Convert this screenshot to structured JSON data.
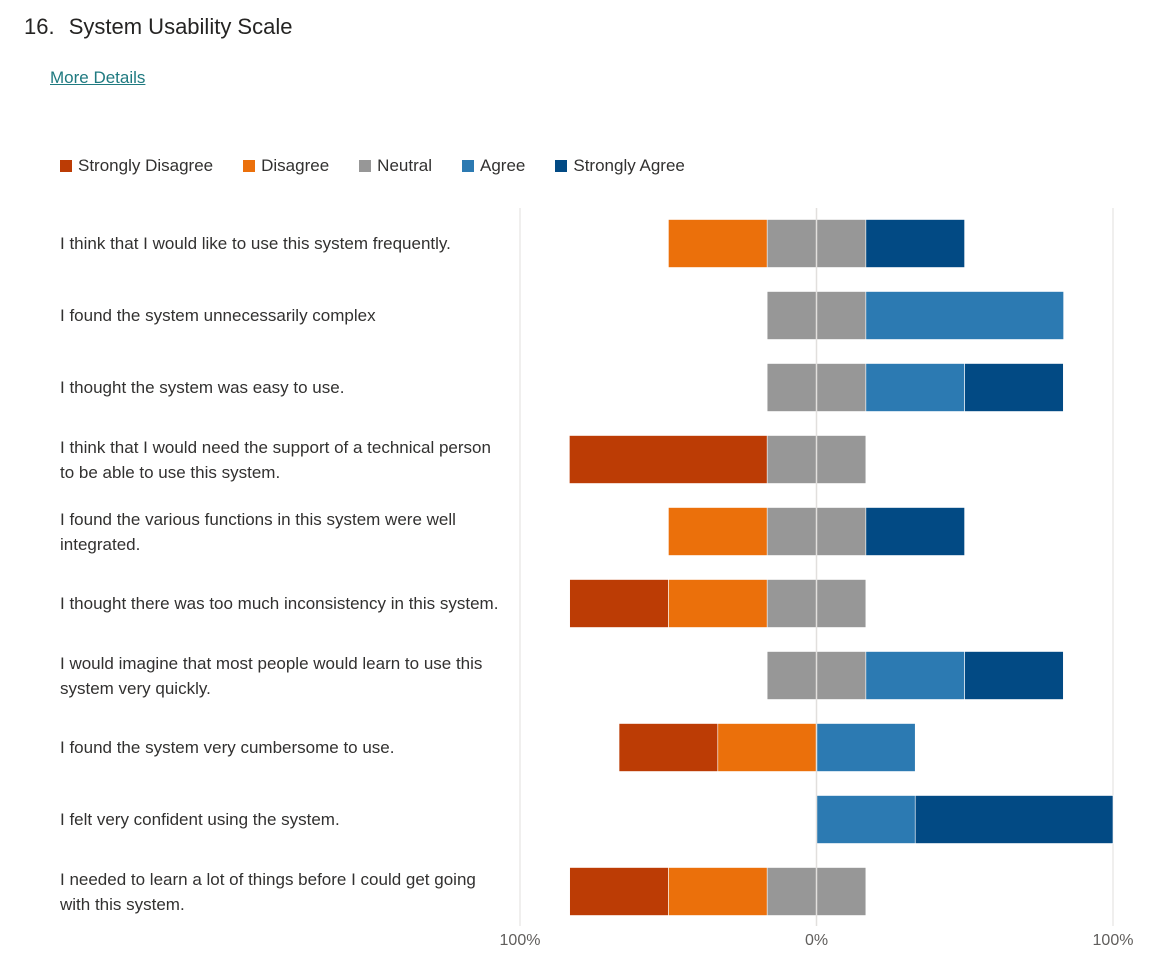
{
  "question": {
    "number": "16.",
    "title": "System Usability Scale",
    "more_details": "More Details"
  },
  "chart_data": {
    "type": "bar",
    "orientation": "horizontal-diverging-stacked",
    "legend_position": "top-left",
    "grid": true,
    "xlim": [
      -100,
      100
    ],
    "x_tick_labels": [
      "100%",
      "0%",
      "100%"
    ],
    "series": [
      {
        "name": "Strongly Disagree",
        "color": "#bc3c05",
        "values": [
          0,
          0,
          0,
          66.7,
          0,
          33.3,
          0,
          33.3,
          0,
          33.3
        ]
      },
      {
        "name": "Disagree",
        "color": "#eb700b",
        "values": [
          33.3,
          0,
          0,
          0,
          33.3,
          33.3,
          0,
          33.3,
          0,
          33.3
        ]
      },
      {
        "name": "Neutral",
        "color": "#979797",
        "values": [
          33.3,
          33.3,
          33.3,
          33.3,
          33.3,
          33.3,
          33.3,
          0,
          0,
          33.3
        ]
      },
      {
        "name": "Agree",
        "color": "#2c7ab2",
        "values": [
          0,
          66.7,
          33.3,
          0,
          0,
          0,
          33.3,
          33.3,
          33.3,
          0
        ]
      },
      {
        "name": "Strongly Agree",
        "color": "#024a84",
        "values": [
          33.3,
          0,
          33.3,
          0,
          33.3,
          0,
          33.3,
          0,
          66.7,
          0
        ]
      }
    ],
    "categories": [
      "I think that I would like to use this system frequently.",
      "I found the system unnecessarily complex",
      "I thought the system was easy to use.",
      "I think that I would need the support of a technical person to be able to use this system.",
      "I found the various functions in this system were well integrated.",
      "I thought there was too much inconsistency in this system.",
      "I would imagine that most people would learn to use this system very quickly.",
      "I found the system very cumbersome to use.",
      "I felt very confident using the system.",
      "I needed to learn a lot of things before I could get going with this system."
    ]
  }
}
